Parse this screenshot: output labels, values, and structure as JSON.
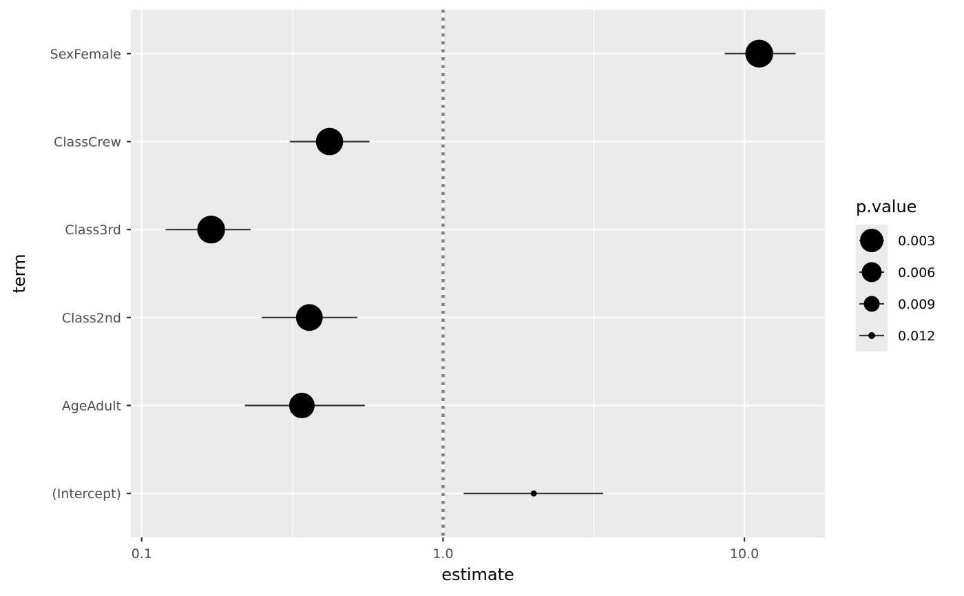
{
  "chart_data": {
    "type": "scatter",
    "subtype": "forest-plot",
    "title": "",
    "xlabel": "estimate",
    "ylabel": "term",
    "x_scale": "log10",
    "xlim": [
      0.092,
      18.5
    ],
    "x_ticks": [
      0.1,
      1.0,
      10.0
    ],
    "x_tick_labels": [
      "0.1",
      "1.0",
      "10.0"
    ],
    "reference_line": {
      "x": 1.0,
      "style": "dotted",
      "color": "#808080"
    },
    "grid": true,
    "legend": {
      "title": "p.value",
      "placement": "right",
      "entries": [
        {
          "label": "0.003",
          "p": 0.003
        },
        {
          "label": "0.006",
          "p": 0.006
        },
        {
          "label": "0.009",
          "p": 0.009
        },
        {
          "label": "0.012",
          "p": 0.012
        }
      ]
    },
    "categories": [
      "SexFemale",
      "ClassCrew",
      "Class3rd",
      "Class2nd",
      "AgeAdult",
      "(Intercept)"
    ],
    "points": [
      {
        "term": "SexFemale",
        "estimate": 11.2,
        "conf_low": 8.6,
        "conf_high": 14.8,
        "p_value": 0.0002
      },
      {
        "term": "ClassCrew",
        "estimate": 0.42,
        "conf_low": 0.31,
        "conf_high": 0.57,
        "p_value": 0.0005
      },
      {
        "term": "Class3rd",
        "estimate": 0.17,
        "conf_low": 0.12,
        "conf_high": 0.23,
        "p_value": 0.0002
      },
      {
        "term": "Class2nd",
        "estimate": 0.36,
        "conf_low": 0.25,
        "conf_high": 0.52,
        "p_value": 0.0008
      },
      {
        "term": "AgeAdult",
        "estimate": 0.34,
        "conf_low": 0.22,
        "conf_high": 0.55,
        "p_value": 0.0015
      },
      {
        "term": "(Intercept)",
        "estimate": 2.0,
        "conf_low": 1.17,
        "conf_high": 3.4,
        "p_value": 0.0125
      }
    ],
    "colors": {
      "panel_background": "#ebebeb",
      "grid_line": "#ffffff",
      "point": "#000000",
      "error_bar": "#333333"
    }
  }
}
